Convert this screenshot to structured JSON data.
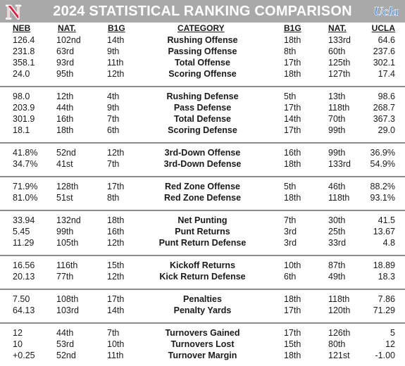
{
  "title": "2024 STATISTICAL RANKING COMPARISON",
  "logos": {
    "left_letter": "N",
    "left_color": "#e41c38",
    "right_text": "Ucla",
    "right_color": "#4a90e2"
  },
  "headers": {
    "neb": "NEB",
    "neb_nat": "NAT.",
    "neb_b1g": "B1G",
    "category": "CATEGORY",
    "ucla_b1g": "B1G",
    "ucla_nat": "NAT.",
    "ucla": "UCLA"
  },
  "groups": [
    {
      "rows": [
        {
          "neb": "126.4",
          "neb_nat": "102nd",
          "neb_b1g": "14th",
          "category": "Rushing Offense",
          "ucla_b1g": "18th",
          "ucla_nat": "133rd",
          "ucla": "64.6"
        },
        {
          "neb": "231.8",
          "neb_nat": "63rd",
          "neb_b1g": "9th",
          "category": "Passing Offense",
          "ucla_b1g": "8th",
          "ucla_nat": "60th",
          "ucla": "237.6"
        },
        {
          "neb": "358.1",
          "neb_nat": "93rd",
          "neb_b1g": "11th",
          "category": "Total Offense",
          "ucla_b1g": "17th",
          "ucla_nat": "125th",
          "ucla": "302.1"
        },
        {
          "neb": "24.0",
          "neb_nat": "95th",
          "neb_b1g": "12th",
          "category": "Scoring Offense",
          "ucla_b1g": "18th",
          "ucla_nat": "127th",
          "ucla": "17.4"
        }
      ]
    },
    {
      "rows": [
        {
          "neb": "98.0",
          "neb_nat": "12th",
          "neb_b1g": "4th",
          "category": "Rushing Defense",
          "ucla_b1g": "5th",
          "ucla_nat": "13th",
          "ucla": "98.6"
        },
        {
          "neb": "203.9",
          "neb_nat": "44th",
          "neb_b1g": "9th",
          "category": "Pass Defense",
          "ucla_b1g": "17th",
          "ucla_nat": "118th",
          "ucla": "268.7"
        },
        {
          "neb": "301.9",
          "neb_nat": "16th",
          "neb_b1g": "7th",
          "category": "Total Defense",
          "ucla_b1g": "14th",
          "ucla_nat": "70th",
          "ucla": "367.3"
        },
        {
          "neb": "18.1",
          "neb_nat": "18th",
          "neb_b1g": "6th",
          "category": "Scoring Defense",
          "ucla_b1g": "17th",
          "ucla_nat": "99th",
          "ucla": "29.0"
        }
      ]
    },
    {
      "rows": [
        {
          "neb": "41.8%",
          "neb_nat": "52nd",
          "neb_b1g": "12th",
          "category": "3rd-Down Offense",
          "ucla_b1g": "16th",
          "ucla_nat": "99th",
          "ucla": "36.9%"
        },
        {
          "neb": "34.7%",
          "neb_nat": "41st",
          "neb_b1g": "7th",
          "category": "3rd-Down Defense",
          "ucla_b1g": "18th",
          "ucla_nat": "133rd",
          "ucla": "54.9%"
        }
      ]
    },
    {
      "rows": [
        {
          "neb": "71.9%",
          "neb_nat": "128th",
          "neb_b1g": "17th",
          "category": "Red Zone Offense",
          "ucla_b1g": "5th",
          "ucla_nat": "46th",
          "ucla": "88.2%"
        },
        {
          "neb": "81.0%",
          "neb_nat": "51st",
          "neb_b1g": "8th",
          "category": "Red Zone Defense",
          "ucla_b1g": "18th",
          "ucla_nat": "118th",
          "ucla": "93.1%"
        }
      ]
    },
    {
      "rows": [
        {
          "neb": "33.94",
          "neb_nat": "132nd",
          "neb_b1g": "18th",
          "category": "Net Punting",
          "ucla_b1g": "7th",
          "ucla_nat": "30th",
          "ucla": "41.5"
        },
        {
          "neb": "5.45",
          "neb_nat": "99th",
          "neb_b1g": "16th",
          "category": "Punt Returns",
          "ucla_b1g": "3rd",
          "ucla_nat": "25th",
          "ucla": "13.67"
        },
        {
          "neb": "11.29",
          "neb_nat": "105th",
          "neb_b1g": "12th",
          "category": "Punt Return Defense",
          "ucla_b1g": "3rd",
          "ucla_nat": "33rd",
          "ucla": "4.8"
        }
      ]
    },
    {
      "rows": [
        {
          "neb": "16.56",
          "neb_nat": "116th",
          "neb_b1g": "15th",
          "category": "Kickoff Returns",
          "ucla_b1g": "10th",
          "ucla_nat": "87th",
          "ucla": "18.89"
        },
        {
          "neb": "20.13",
          "neb_nat": "77th",
          "neb_b1g": "12th",
          "category": "Kick Return Defense",
          "ucla_b1g": "6th",
          "ucla_nat": "49th",
          "ucla": "18.3"
        }
      ]
    },
    {
      "rows": [
        {
          "neb": "7.50",
          "neb_nat": "108th",
          "neb_b1g": "17th",
          "category": "Penalties",
          "ucla_b1g": "18th",
          "ucla_nat": "118th",
          "ucla": "7.86"
        },
        {
          "neb": "64.13",
          "neb_nat": "103rd",
          "neb_b1g": "14th",
          "category": "Penalty Yards",
          "ucla_b1g": "17th",
          "ucla_nat": "120th",
          "ucla": "71.29"
        }
      ]
    },
    {
      "rows": [
        {
          "neb": "12",
          "neb_nat": "44th",
          "neb_b1g": "7th",
          "category": "Turnovers Gained",
          "ucla_b1g": "17th",
          "ucla_nat": "126th",
          "ucla": "5"
        },
        {
          "neb": "10",
          "neb_nat": "53rd",
          "neb_b1g": "10th",
          "category": "Turnovers Lost",
          "ucla_b1g": "15th",
          "ucla_nat": "80th",
          "ucla": "12"
        },
        {
          "neb": "+0.25",
          "neb_nat": "52nd",
          "neb_b1g": "11th",
          "category": "Turnover Margin",
          "ucla_b1g": "18th",
          "ucla_nat": "121st",
          "ucla": "-1.00"
        }
      ]
    }
  ]
}
